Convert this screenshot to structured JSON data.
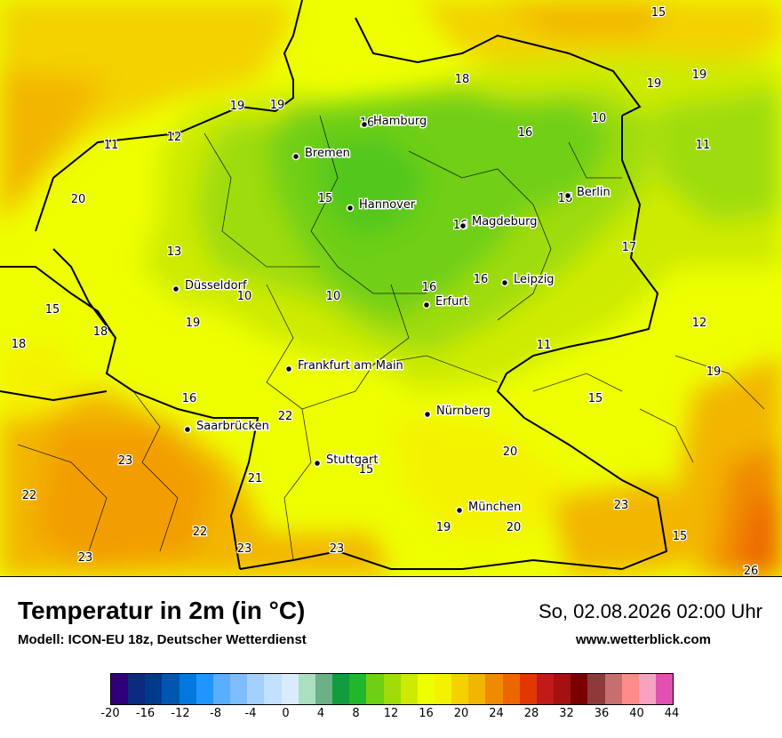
{
  "cities": [
    {
      "name": "Hamburg"
    },
    {
      "name": "Bremen"
    },
    {
      "name": "Hannover"
    },
    {
      "name": "Berlin"
    },
    {
      "name": "Magdeburg"
    },
    {
      "name": "Düsseldorf"
    },
    {
      "name": "Leipzig"
    },
    {
      "name": "Erfurt"
    },
    {
      "name": "Frankfurt am Main"
    },
    {
      "name": "Nürnberg"
    },
    {
      "name": "Saarbrücken"
    },
    {
      "name": "Stuttgart"
    },
    {
      "name": "München"
    }
  ],
  "values": [
    "15",
    "19",
    "19",
    "18",
    "10",
    "16",
    "11",
    "12",
    "11",
    "19",
    "20",
    "15",
    "16",
    "13",
    "17",
    "16",
    "16",
    "10",
    "10",
    "19",
    "15",
    "18",
    "12",
    "18",
    "19",
    "11",
    "16",
    "19",
    "15",
    "22",
    "23",
    "20",
    "21",
    "22",
    "15",
    "22",
    "23",
    "23",
    "23",
    "23",
    "19",
    "20",
    "23",
    "15",
    "26",
    "16",
    "16"
  ],
  "footer": {
    "title": "Temperatur in 2m (in °C)",
    "model": "Modell: ICON-EU 18z, Deutscher Wetterdienst",
    "datetime": "So, 02.08.2026 02:00 Uhr",
    "website": "www.wetterblick.com"
  },
  "legend": {
    "colors": [
      "#30007a",
      "#0a2a80",
      "#003a8c",
      "#0057b0",
      "#0078dc",
      "#1f96ff",
      "#5aaeff",
      "#7dbcff",
      "#a3d0ff",
      "#c2e0ff",
      "#d9ebff",
      "#a8e0c0",
      "#6cb088",
      "#139b3f",
      "#20b82a",
      "#6fcf12",
      "#9fdc0a",
      "#cdeb00",
      "#eeff00",
      "#f5f200",
      "#f3d200",
      "#f3b500",
      "#f08a00",
      "#ee6600",
      "#e23800",
      "#c01a1a",
      "#a51010",
      "#7a0000",
      "#8e3a3a",
      "#c86e6e",
      "#ff8b8b",
      "#f7a2c0",
      "#e050b0"
    ],
    "ticks": [
      "-20",
      "-16",
      "-12",
      "-8",
      "-4",
      "0",
      "4",
      "8",
      "12",
      "16",
      "20",
      "24",
      "28",
      "32",
      "36",
      "40",
      "44"
    ]
  }
}
